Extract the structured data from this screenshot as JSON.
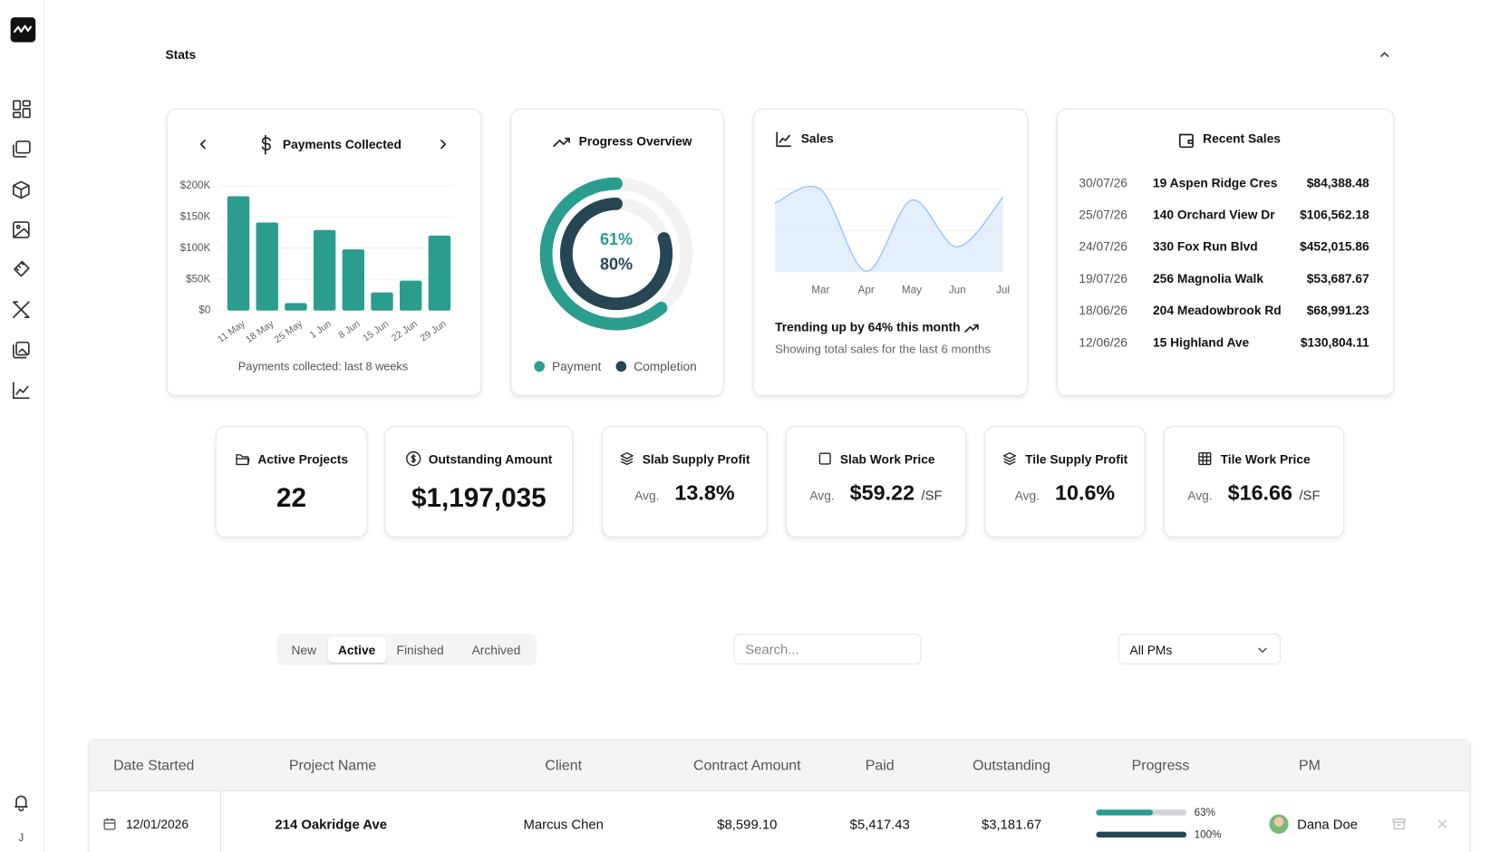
{
  "sidebar": {
    "user_initial": "J"
  },
  "stats": {
    "title": "Stats"
  },
  "chart_data": [
    {
      "type": "bar",
      "title": "Payments Collected",
      "caption": "Payments collected: last 8 weeks",
      "categories": [
        "11 May",
        "18 May",
        "25 May",
        "1 Jun",
        "8 Jun",
        "15 Jun",
        "22 Jun",
        "29 Jun"
      ],
      "values": [
        183000,
        141000,
        12000,
        129000,
        98000,
        29000,
        48000,
        120000
      ],
      "color": "#2a9d8f",
      "ylim": [
        0,
        200000
      ],
      "yticks": [
        {
          "value": 0,
          "label": "$0"
        },
        {
          "value": 50000,
          "label": "$50K"
        },
        {
          "value": 100000,
          "label": "$100K"
        },
        {
          "value": 150000,
          "label": "$150K"
        },
        {
          "value": 200000,
          "label": "$200K"
        }
      ],
      "grid": true
    },
    {
      "type": "radial",
      "title": "Progress Overview",
      "series": [
        {
          "name": "Payment",
          "color": "#2a9d8f",
          "values": [
            61
          ],
          "value_labels": [
            "61%"
          ]
        },
        {
          "name": "Completion",
          "color": "#264653",
          "values": [
            80
          ],
          "value_labels": [
            "80%"
          ]
        }
      ]
    },
    {
      "type": "area",
      "title": "Sales",
      "categories": [
        null,
        "Mar",
        "Apr",
        "May",
        "Jun",
        "Jul"
      ],
      "values": [
        71,
        85,
        1,
        74,
        26,
        77
      ],
      "color": "#93c5fd",
      "annotations": [
        "Trending up by 64% this month",
        "Showing total sales for the last 6 months"
      ]
    }
  ],
  "recent_sales": {
    "title": "Recent Sales",
    "rows": [
      [
        "30/07/26",
        "19 Aspen Ridge Cres",
        "$84,388.48"
      ],
      [
        "25/07/26",
        "140 Orchard View Dr",
        "$106,562.18"
      ],
      [
        "24/07/26",
        "330 Fox Run Blvd",
        "$452,015.86"
      ],
      [
        "19/07/26",
        "256 Magnolia Walk",
        "$53,687.67"
      ],
      [
        "18/06/26",
        "204 Meadowbrook Rd",
        "$68,991.23"
      ],
      [
        "12/06/26",
        "15 Highland Ave",
        "$130,804.11"
      ]
    ]
  },
  "metrics": [
    {
      "title": "Active Projects",
      "value": "22"
    },
    {
      "title": "Outstanding Amount",
      "value": "$1,197,035"
    },
    {
      "title": "Slab Supply Profit",
      "prefix": "Avg.",
      "value": "13.8%"
    },
    {
      "title": "Slab Work Price",
      "prefix": "Avg.",
      "value": "$59.22",
      "unit": "/SF"
    },
    {
      "title": "Tile Supply Profit",
      "prefix": "Avg.",
      "value": "10.6%"
    },
    {
      "title": "Tile Work Price",
      "prefix": "Avg.",
      "value": "$16.66",
      "unit": "/SF"
    }
  ],
  "filters": {
    "tabs": [
      {
        "label": "New",
        "selected": false
      },
      {
        "label": "Active",
        "selected": true
      },
      {
        "label": "Finished",
        "selected": false
      },
      {
        "label": "Archived",
        "selected": false
      }
    ],
    "search_placeholder": "Search...",
    "pm_select": "All PMs"
  },
  "table": {
    "headers": [
      "Date Started",
      "Project Name",
      "Client",
      "Contract Amount",
      "Paid",
      "Outstanding",
      "Progress",
      "PM"
    ],
    "rows": [
      {
        "date": "12/01/2026",
        "project": "214 Oakridge Ave",
        "client": "Marcus Chen",
        "contract": "$8,599.10",
        "paid": "$5,417.43",
        "outstanding": "$3,181.67",
        "progress": [
          {
            "value": 63,
            "label": "63%"
          },
          {
            "value": 100,
            "label": "100%"
          }
        ],
        "pm": "Dana Doe"
      }
    ]
  }
}
